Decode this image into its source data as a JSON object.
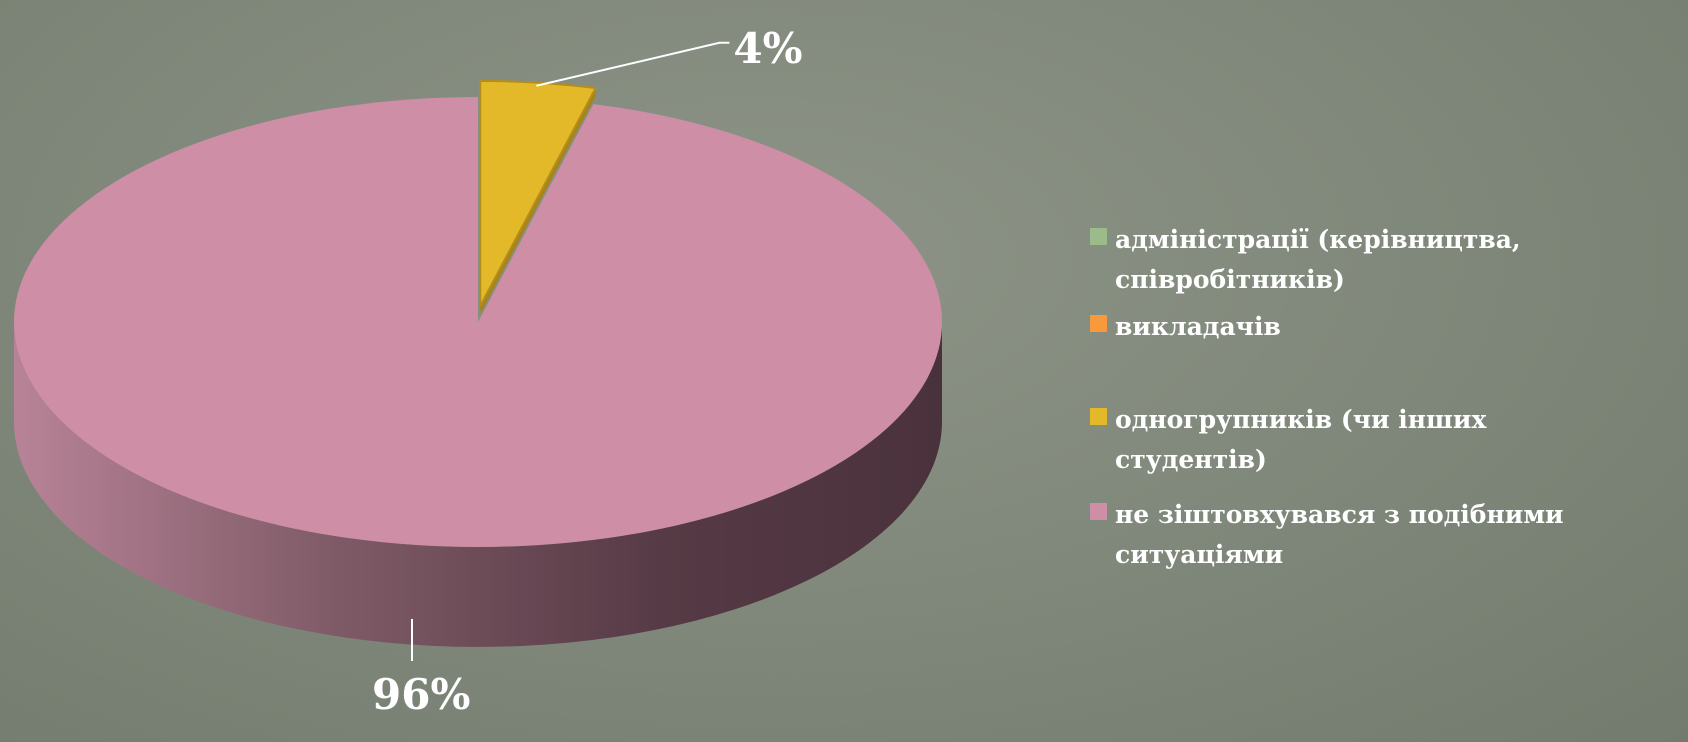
{
  "chart_data": {
    "type": "pie",
    "title": "",
    "legend_position": "right",
    "categories": [
      "адміністрації (керівництва, співробітників)",
      "викладачів",
      "одногрупників (чи інших студентів)",
      "не зіштовхувався з подібними ситуаціями"
    ],
    "values": [
      0,
      0,
      4,
      96
    ],
    "data_labels": [
      "",
      "",
      "4%",
      "96%"
    ],
    "colors": [
      "#9bbb8a",
      "#f79a3e",
      "#e3b92a",
      "#ce8ea6"
    ],
    "exploded": [
      false,
      false,
      true,
      false
    ],
    "three_d": true
  }
}
